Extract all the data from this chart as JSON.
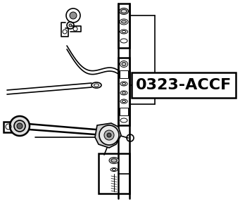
{
  "bg_color": "#ffffff",
  "line_color": "#000000",
  "fig_width": 3.41,
  "fig_height": 2.87,
  "dpi": 100,
  "label_text": "0323-ACCF",
  "label_fontsize": 16,
  "lw_thin": 0.7,
  "lw_med": 1.2,
  "lw_thick": 1.8
}
